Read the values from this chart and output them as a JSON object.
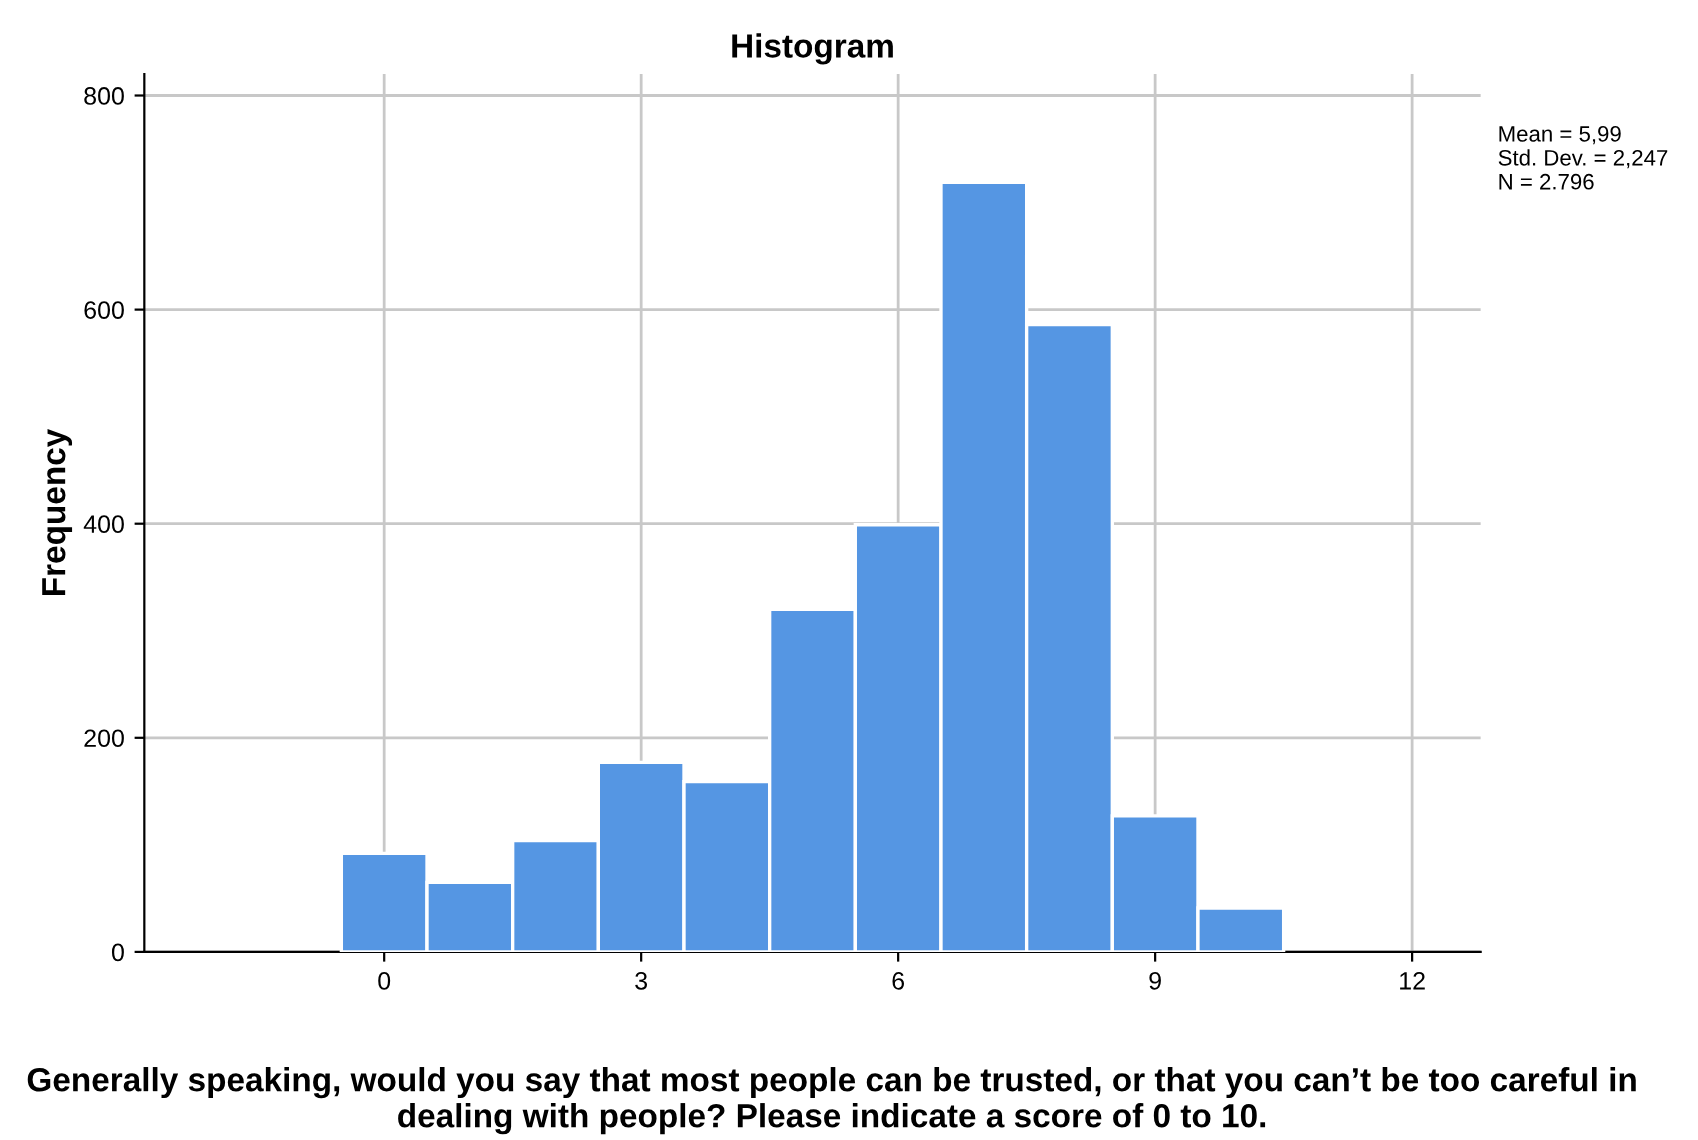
{
  "chart_data": {
    "type": "histogram",
    "title": "Histogram",
    "xlabel": "Generally speaking, would you say that most people can be trusted, or that you can’t be too careful in dealing with people? Please indicate a score of 0 to 10.",
    "ylabel": "Frequency",
    "bins": [
      -0.5,
      0.5,
      1.5,
      2.5,
      3.5,
      4.5,
      5.5,
      6.5,
      7.5,
      8.5,
      9.5,
      10.5
    ],
    "values": [
      92,
      65,
      104,
      177,
      159,
      320,
      399,
      719,
      586,
      127,
      41
    ],
    "color": "#5596e3",
    "xlim": [
      -2.8,
      12.8
    ],
    "xticks": [
      0,
      3,
      6,
      9,
      12
    ],
    "ylim": [
      0,
      820
    ],
    "yticks": [
      0,
      200,
      400,
      600,
      800
    ],
    "grid": true,
    "annotations": [
      "Mean = 5,99\nStd. Dev. = 2,247\nN = 2.796"
    ]
  }
}
